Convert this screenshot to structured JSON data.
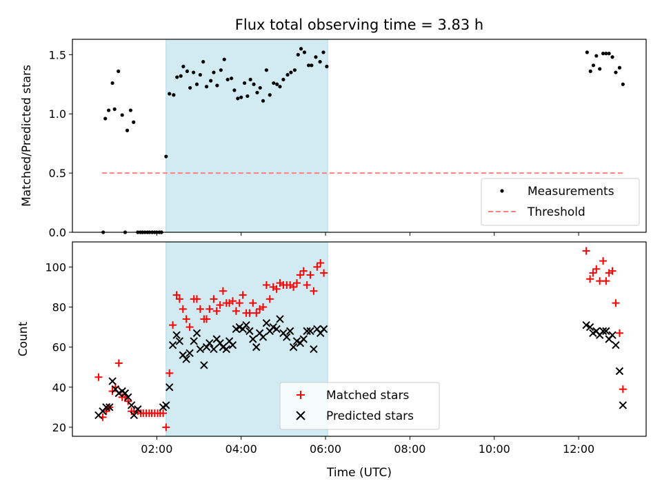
{
  "chart_data": {
    "type": "scatter",
    "title": "Flux total observing time = 3.83 h",
    "xlabel": "Time (UTC)",
    "x_unit": "hours UTC",
    "xlim": [
      0.0,
      13.6
    ],
    "xticks": [
      {
        "value": 2,
        "label": "02:00"
      },
      {
        "value": 4,
        "label": "04:00"
      },
      {
        "value": 6,
        "label": "06:00"
      },
      {
        "value": 8,
        "label": "08:00"
      },
      {
        "value": 10,
        "label": "10:00"
      },
      {
        "value": 12,
        "label": "12:00"
      }
    ],
    "highlight_span": {
      "start": 2.22,
      "end": 6.05,
      "color": "#add8e6"
    },
    "top": {
      "ylabel": "Matched/Predicted stars",
      "ylim": [
        0,
        1.63
      ],
      "yticks": [
        {
          "value": 0.0,
          "label": "0.0"
        },
        {
          "value": 0.5,
          "label": "0.5"
        },
        {
          "value": 1.0,
          "label": "1.0"
        },
        {
          "value": 1.5,
          "label": "1.5"
        }
      ],
      "legend": {
        "position": "lower-right",
        "entries": [
          "Measurements",
          "Threshold"
        ]
      },
      "threshold": {
        "name": "Threshold",
        "value": 0.5,
        "x_start": 0.7,
        "x_end": 13.1,
        "color": "#ff7f7f",
        "style": "dashed"
      },
      "measurements": {
        "name": "Measurements",
        "color": "#000000",
        "points": [
          [
            0.73,
            0.0
          ],
          [
            0.78,
            0.96
          ],
          [
            0.86,
            1.03
          ],
          [
            0.95,
            1.26
          ],
          [
            1.0,
            1.04
          ],
          [
            1.09,
            1.36
          ],
          [
            1.18,
            0.99
          ],
          [
            1.25,
            0.0
          ],
          [
            1.3,
            0.86
          ],
          [
            1.38,
            1.03
          ],
          [
            1.45,
            0.93
          ],
          [
            1.55,
            0.0
          ],
          [
            1.61,
            0.0
          ],
          [
            1.66,
            0.0
          ],
          [
            1.72,
            0.0
          ],
          [
            1.78,
            0.0
          ],
          [
            1.83,
            0.0
          ],
          [
            1.89,
            0.0
          ],
          [
            1.95,
            0.0
          ],
          [
            2.0,
            0.0
          ],
          [
            2.06,
            0.0
          ],
          [
            2.11,
            0.0
          ],
          [
            2.22,
            0.64
          ],
          [
            2.3,
            1.17
          ],
          [
            2.4,
            1.16
          ],
          [
            2.48,
            1.31
          ],
          [
            2.57,
            1.32
          ],
          [
            2.63,
            1.4
          ],
          [
            2.72,
            1.36
          ],
          [
            2.79,
            1.22
          ],
          [
            2.87,
            1.35
          ],
          [
            2.95,
            1.25
          ],
          [
            3.03,
            1.33
          ],
          [
            3.1,
            1.44
          ],
          [
            3.18,
            1.23
          ],
          [
            3.28,
            1.28
          ],
          [
            3.35,
            1.35
          ],
          [
            3.43,
            1.24
          ],
          [
            3.52,
            1.37
          ],
          [
            3.6,
            1.46
          ],
          [
            3.68,
            1.29
          ],
          [
            3.77,
            1.3
          ],
          [
            3.84,
            1.2
          ],
          [
            3.92,
            1.13
          ],
          [
            4.0,
            1.14
          ],
          [
            4.08,
            1.26
          ],
          [
            4.15,
            1.15
          ],
          [
            4.22,
            1.29
          ],
          [
            4.3,
            1.25
          ],
          [
            4.38,
            1.18
          ],
          [
            4.45,
            1.22
          ],
          [
            4.52,
            1.11
          ],
          [
            4.6,
            1.37
          ],
          [
            4.68,
            1.16
          ],
          [
            4.77,
            1.26
          ],
          [
            4.85,
            1.25
          ],
          [
            4.92,
            1.23
          ],
          [
            5.0,
            1.29
          ],
          [
            5.1,
            1.33
          ],
          [
            5.18,
            1.35
          ],
          [
            5.27,
            1.37
          ],
          [
            5.35,
            1.5
          ],
          [
            5.42,
            1.55
          ],
          [
            5.5,
            1.52
          ],
          [
            5.6,
            1.41
          ],
          [
            5.67,
            1.41
          ],
          [
            5.77,
            1.48
          ],
          [
            5.87,
            1.44
          ],
          [
            5.95,
            1.52
          ],
          [
            6.03,
            1.4
          ],
          [
            12.2,
            1.52
          ],
          [
            12.28,
            1.36
          ],
          [
            12.35,
            1.41
          ],
          [
            12.42,
            1.49
          ],
          [
            12.5,
            1.38
          ],
          [
            12.58,
            1.51
          ],
          [
            12.65,
            1.51
          ],
          [
            12.72,
            1.51
          ],
          [
            12.8,
            1.48
          ],
          [
            12.88,
            1.35
          ],
          [
            12.97,
            1.39
          ],
          [
            13.05,
            1.25
          ]
        ]
      }
    },
    "bottom": {
      "ylabel": "Count",
      "ylim": [
        15.5,
        112.5
      ],
      "yticks": [
        {
          "value": 20,
          "label": "20"
        },
        {
          "value": 40,
          "label": "40"
        },
        {
          "value": 60,
          "label": "60"
        },
        {
          "value": 80,
          "label": "80"
        },
        {
          "value": 100,
          "label": "100"
        }
      ],
      "legend": {
        "position": "lower-center",
        "entries": [
          "Matched stars",
          "Predicted stars"
        ]
      },
      "series": [
        {
          "name": "Matched stars",
          "marker": "plus",
          "color": "#ff0000",
          "points": [
            [
              0.62,
              45
            ],
            [
              0.72,
              25
            ],
            [
              0.8,
              28
            ],
            [
              0.88,
              30
            ],
            [
              0.95,
              38
            ],
            [
              1.02,
              40
            ],
            [
              1.1,
              52
            ],
            [
              1.18,
              35
            ],
            [
              1.25,
              35
            ],
            [
              1.32,
              33
            ],
            [
              1.4,
              28
            ],
            [
              1.46,
              28
            ],
            [
              1.55,
              28
            ],
            [
              1.62,
              27
            ],
            [
              1.68,
              27
            ],
            [
              1.75,
              27
            ],
            [
              1.82,
              27
            ],
            [
              1.88,
              27
            ],
            [
              1.95,
              27
            ],
            [
              2.02,
              27
            ],
            [
              2.08,
              27
            ],
            [
              2.15,
              27
            ],
            [
              2.22,
              20
            ],
            [
              2.3,
              47
            ],
            [
              2.38,
              71
            ],
            [
              2.47,
              86
            ],
            [
              2.54,
              84
            ],
            [
              2.62,
              79
            ],
            [
              2.7,
              74
            ],
            [
              2.78,
              70
            ],
            [
              2.88,
              84
            ],
            [
              2.95,
              84
            ],
            [
              3.03,
              79
            ],
            [
              3.12,
              74
            ],
            [
              3.18,
              74
            ],
            [
              3.25,
              79
            ],
            [
              3.35,
              84
            ],
            [
              3.42,
              78
            ],
            [
              3.5,
              81
            ],
            [
              3.57,
              88
            ],
            [
              3.65,
              82
            ],
            [
              3.72,
              82
            ],
            [
              3.8,
              83
            ],
            [
              3.88,
              78
            ],
            [
              3.96,
              82
            ],
            [
              4.04,
              86
            ],
            [
              4.12,
              77
            ],
            [
              4.2,
              77
            ],
            [
              4.28,
              82
            ],
            [
              4.36,
              77
            ],
            [
              4.44,
              79
            ],
            [
              4.52,
              80
            ],
            [
              4.6,
              91
            ],
            [
              4.68,
              84
            ],
            [
              4.76,
              90
            ],
            [
              4.84,
              89
            ],
            [
              4.92,
              92
            ],
            [
              5.0,
              91
            ],
            [
              5.08,
              91
            ],
            [
              5.16,
              91
            ],
            [
              5.24,
              90
            ],
            [
              5.32,
              92
            ],
            [
              5.4,
              96
            ],
            [
              5.48,
              98
            ],
            [
              5.56,
              91
            ],
            [
              5.64,
              96
            ],
            [
              5.72,
              88
            ],
            [
              5.8,
              100
            ],
            [
              5.88,
              102
            ],
            [
              5.96,
              97
            ],
            [
              12.18,
              108
            ],
            [
              12.27,
              94
            ],
            [
              12.34,
              97
            ],
            [
              12.42,
              99
            ],
            [
              12.5,
              93
            ],
            [
              12.58,
              103
            ],
            [
              12.65,
              93
            ],
            [
              12.72,
              97
            ],
            [
              12.8,
              98
            ],
            [
              12.88,
              82
            ],
            [
              12.97,
              67
            ],
            [
              13.05,
              39
            ]
          ]
        },
        {
          "name": "Predicted stars",
          "marker": "x",
          "color": "#000000",
          "points": [
            [
              0.62,
              26
            ],
            [
              0.72,
              28
            ],
            [
              0.8,
              30
            ],
            [
              0.88,
              30
            ],
            [
              0.95,
              43
            ],
            [
              1.02,
              39
            ],
            [
              1.1,
              37
            ],
            [
              1.18,
              38
            ],
            [
              1.25,
              37
            ],
            [
              1.32,
              35
            ],
            [
              1.4,
              31
            ],
            [
              1.46,
              26
            ],
            [
              1.55,
              29
            ],
            [
              2.15,
              30
            ],
            [
              2.22,
              31
            ],
            [
              2.3,
              40
            ],
            [
              2.38,
              61
            ],
            [
              2.47,
              66
            ],
            [
              2.54,
              63
            ],
            [
              2.62,
              56
            ],
            [
              2.7,
              54
            ],
            [
              2.78,
              57
            ],
            [
              2.88,
              63
            ],
            [
              2.95,
              67
            ],
            [
              3.03,
              59
            ],
            [
              3.12,
              51
            ],
            [
              3.18,
              60
            ],
            [
              3.25,
              62
            ],
            [
              3.35,
              59
            ],
            [
              3.42,
              64
            ],
            [
              3.5,
              62
            ],
            [
              3.57,
              60
            ],
            [
              3.65,
              59
            ],
            [
              3.72,
              63
            ],
            [
              3.8,
              61
            ],
            [
              3.88,
              69
            ],
            [
              3.96,
              70
            ],
            [
              4.04,
              69
            ],
            [
              4.12,
              71
            ],
            [
              4.2,
              68
            ],
            [
              4.28,
              64
            ],
            [
              4.36,
              60
            ],
            [
              4.44,
              67
            ],
            [
              4.52,
              65
            ],
            [
              4.6,
              72
            ],
            [
              4.68,
              68
            ],
            [
              4.76,
              70
            ],
            [
              4.84,
              69
            ],
            [
              4.92,
              74
            ],
            [
              5.0,
              67
            ],
            [
              5.08,
              65
            ],
            [
              5.16,
              68
            ],
            [
              5.24,
              60
            ],
            [
              5.32,
              63
            ],
            [
              5.4,
              62
            ],
            [
              5.48,
              64
            ],
            [
              5.56,
              68
            ],
            [
              5.64,
              68
            ],
            [
              5.72,
              59
            ],
            [
              5.8,
              69
            ],
            [
              5.88,
              67
            ],
            [
              5.96,
              69
            ],
            [
              12.18,
              71
            ],
            [
              12.27,
              70
            ],
            [
              12.34,
              67
            ],
            [
              12.42,
              68
            ],
            [
              12.5,
              66
            ],
            [
              12.58,
              68
            ],
            [
              12.65,
              68
            ],
            [
              12.72,
              64
            ],
            [
              12.8,
              66
            ],
            [
              12.88,
              61
            ],
            [
              12.97,
              48
            ],
            [
              13.05,
              31
            ]
          ]
        }
      ]
    }
  }
}
